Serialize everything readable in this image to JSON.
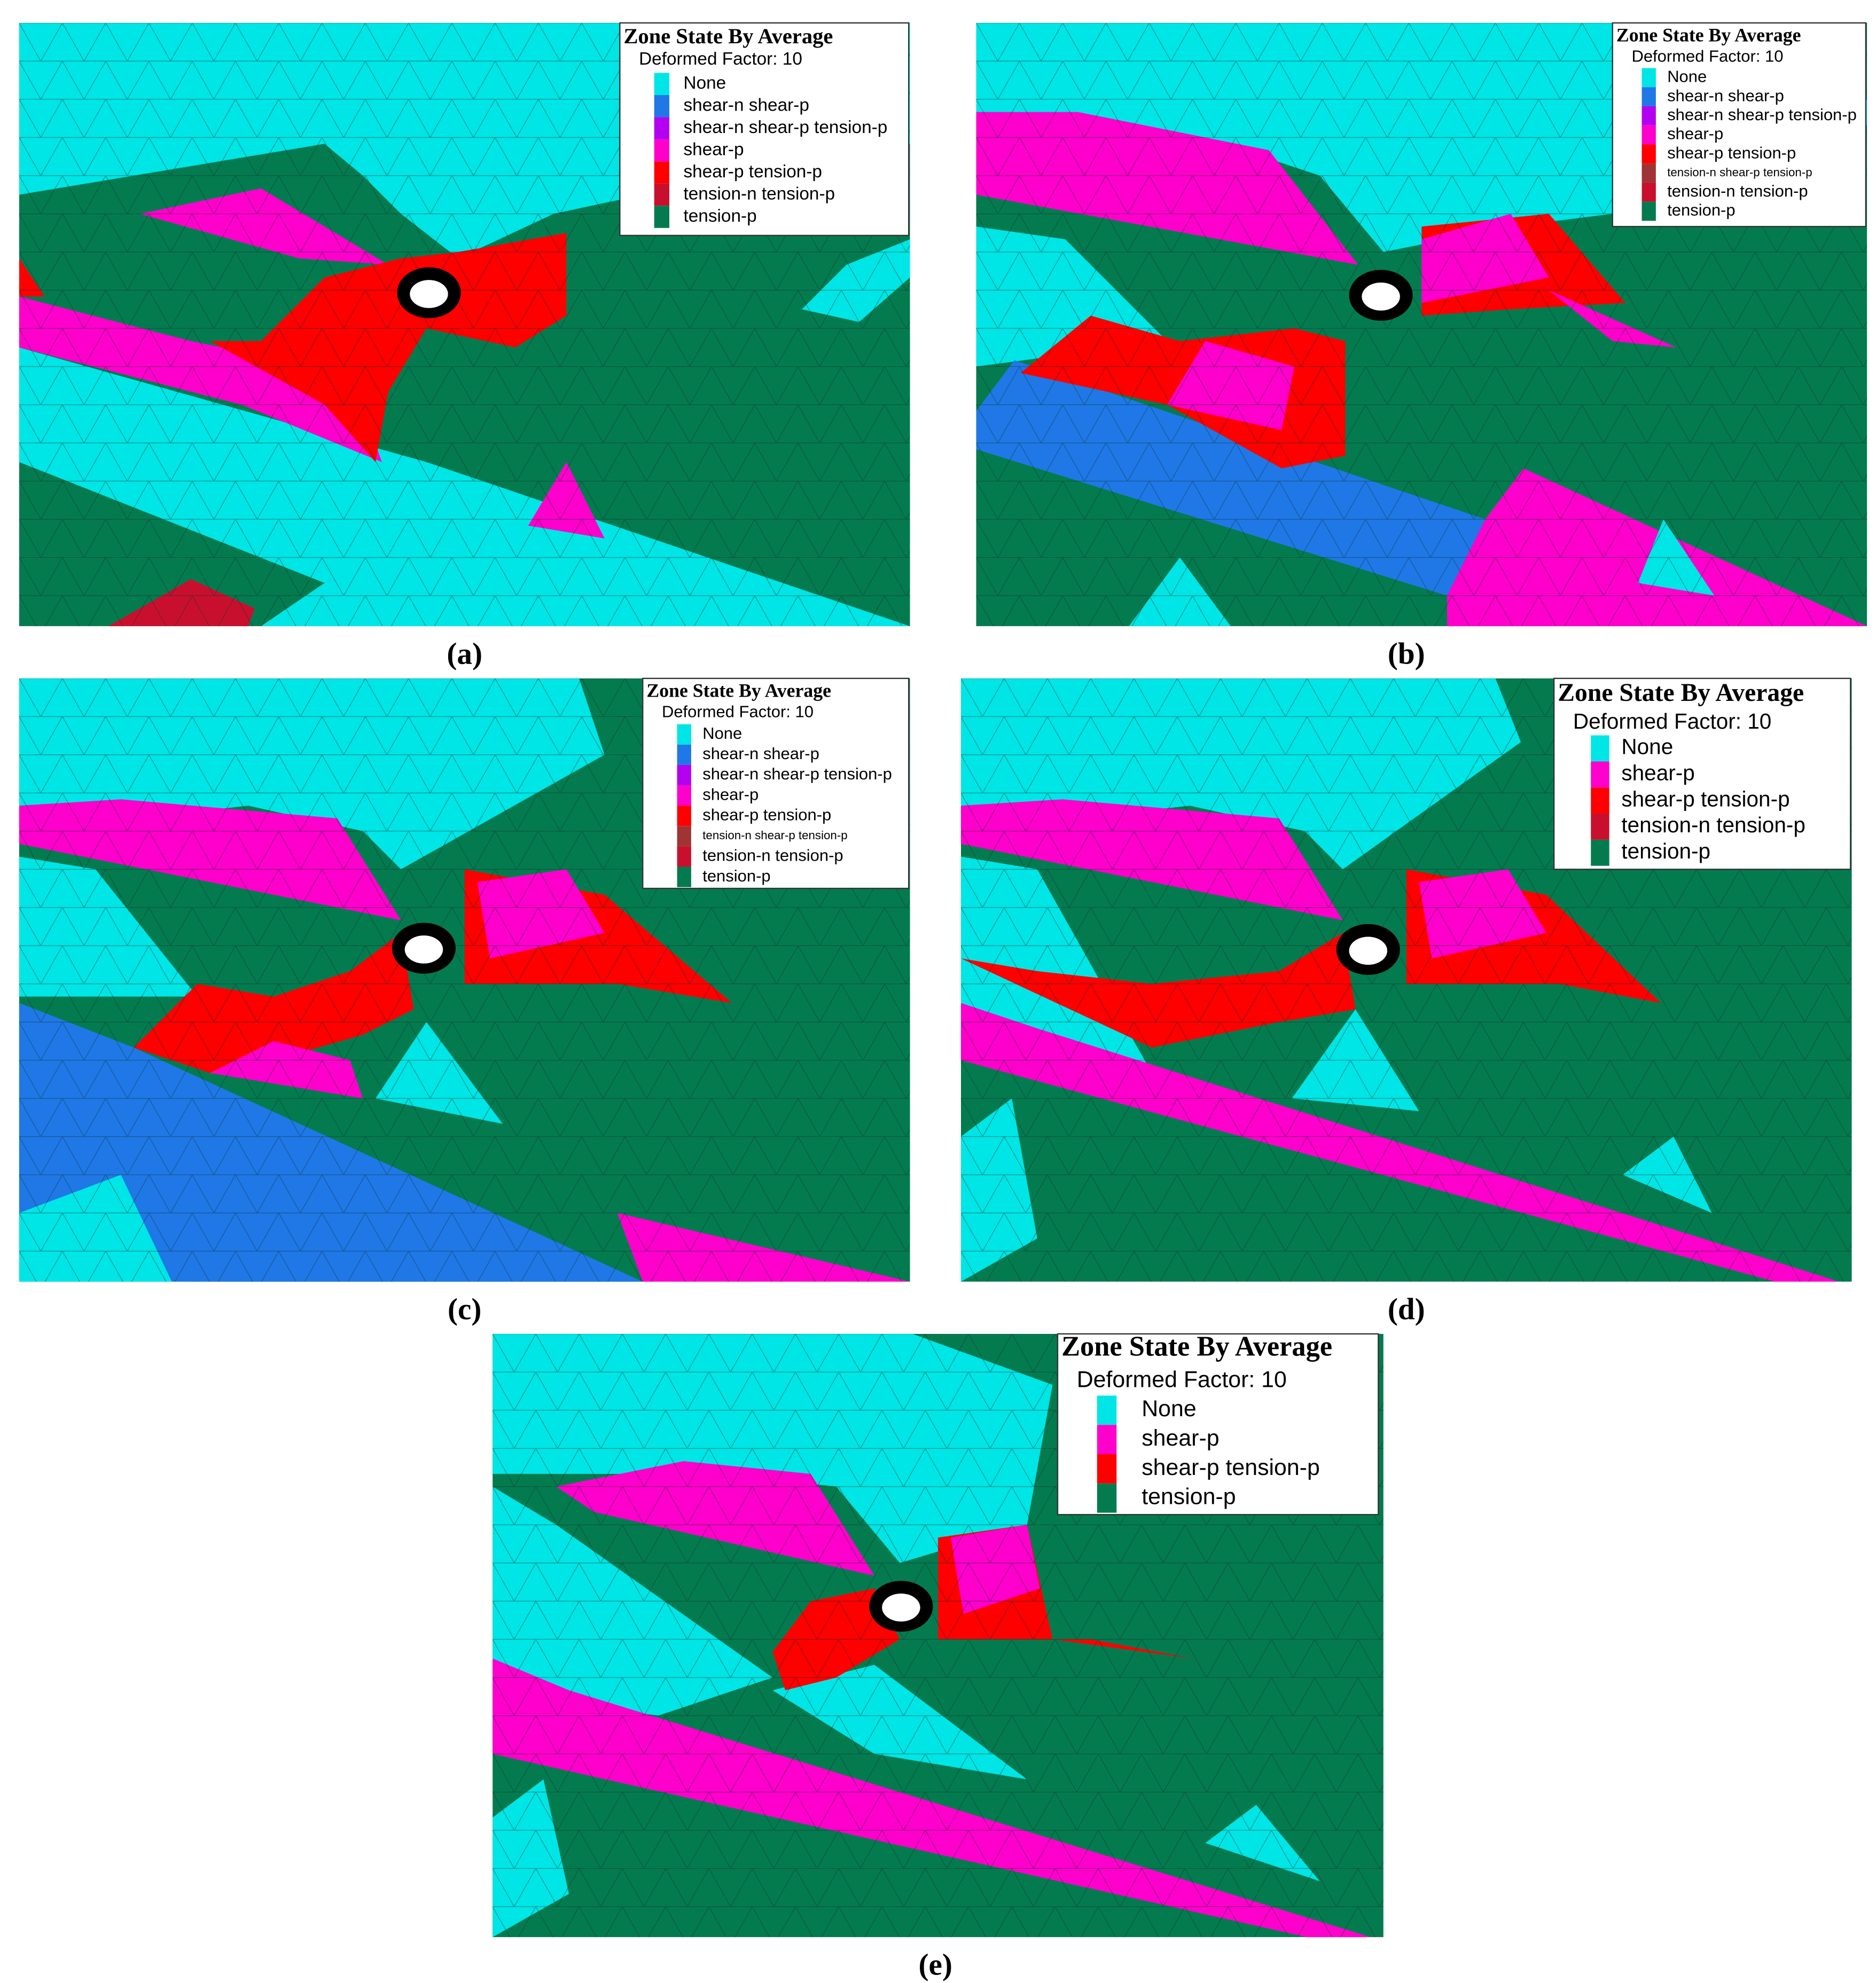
{
  "panels": [
    {
      "caption": "(a)",
      "legend": {
        "title": "Zone State By Average",
        "subtitle": "Deformed Factor: 10",
        "items": [
          {
            "label": "None",
            "color": "#00e5e5"
          },
          {
            "label": "shear-n shear-p",
            "color": "#1f78e6"
          },
          {
            "label": "shear-n shear-p tension-p",
            "color": "#b400f0"
          },
          {
            "label": "shear-p",
            "color": "#ff00cc"
          },
          {
            "label": "shear-p tension-p",
            "color": "#ff0000"
          },
          {
            "label": "tension-n tension-p",
            "color": "#c8102e"
          },
          {
            "label": "tension-p",
            "color": "#047b4f"
          }
        ]
      }
    },
    {
      "caption": "(b)",
      "legend": {
        "title": "Zone State By Average",
        "subtitle": "Deformed Factor: 10",
        "items": [
          {
            "label": "None",
            "color": "#00e5e5"
          },
          {
            "label": "shear-n shear-p",
            "color": "#1f78e6"
          },
          {
            "label": "shear-n shear-p tension-p",
            "color": "#b400f0"
          },
          {
            "label": "shear-p",
            "color": "#ff00cc"
          },
          {
            "label": "shear-p tension-p",
            "color": "#ff0000"
          },
          {
            "label": "tension-n shear-p tension-p",
            "color": "#a03434"
          },
          {
            "label": "tension-n tension-p",
            "color": "#c8102e"
          },
          {
            "label": "tension-p",
            "color": "#047b4f"
          }
        ]
      }
    },
    {
      "caption": "(c)",
      "legend": {
        "title": "Zone State By Average",
        "subtitle": "Deformed Factor: 10",
        "items": [
          {
            "label": "None",
            "color": "#00e5e5"
          },
          {
            "label": "shear-n shear-p",
            "color": "#1f78e6"
          },
          {
            "label": "shear-n shear-p tension-p",
            "color": "#b400f0"
          },
          {
            "label": "shear-p",
            "color": "#ff00cc"
          },
          {
            "label": "shear-p tension-p",
            "color": "#ff0000"
          },
          {
            "label": "tension-n shear-p tension-p",
            "color": "#a03434"
          },
          {
            "label": "tension-n tension-p",
            "color": "#c8102e"
          },
          {
            "label": "tension-p",
            "color": "#047b4f"
          }
        ]
      }
    },
    {
      "caption": "(d)",
      "legend": {
        "title": "Zone State By Average",
        "subtitle": "Deformed Factor: 10",
        "items": [
          {
            "label": "None",
            "color": "#00e5e5"
          },
          {
            "label": "shear-p",
            "color": "#ff00cc"
          },
          {
            "label": "shear-p tension-p",
            "color": "#ff0000"
          },
          {
            "label": "tension-n tension-p",
            "color": "#c8102e"
          },
          {
            "label": "tension-p",
            "color": "#047b4f"
          }
        ]
      }
    },
    {
      "caption": "(e)",
      "legend": {
        "title": "Zone State By Average",
        "subtitle": "Deformed Factor: 10",
        "items": [
          {
            "label": "None",
            "color": "#00e5e5"
          },
          {
            "label": "shear-p",
            "color": "#ff00cc"
          },
          {
            "label": "shear-p tension-p",
            "color": "#ff0000"
          },
          {
            "label": "tension-p",
            "color": "#047b4f"
          }
        ]
      }
    }
  ]
}
